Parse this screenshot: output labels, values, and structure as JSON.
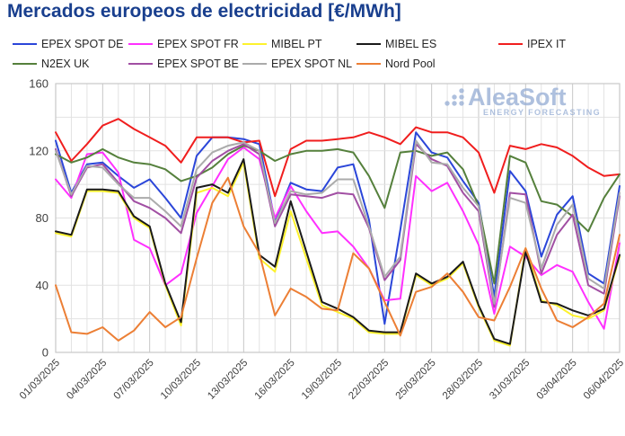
{
  "header": {
    "title": "Mercados europeos de electricidad [€/MWh]"
  },
  "watermark": {
    "brand": "AleaSoft",
    "tagline": "ENERGY FORECASTING",
    "color": "#9bb1d6"
  },
  "legend": {
    "rows": [
      [
        "EPEX SPOT DE",
        "EPEX SPOT FR",
        "MIBEL PT",
        "MIBEL ES",
        "IPEX IT"
      ],
      [
        "N2EX UK",
        "EPEX SPOT BE",
        "EPEX SPOT NL",
        "Nord Pool"
      ]
    ]
  },
  "chart_data": {
    "type": "line",
    "title": "Mercados europeos de electricidad [€/MWh]",
    "xlabel": "",
    "ylabel": "",
    "ylim": [
      0,
      160
    ],
    "y_ticks": [
      0,
      40,
      80,
      120,
      160
    ],
    "y_minor_step": 20,
    "grid": true,
    "legend_position": "top",
    "x": [
      "01/03/2025",
      "02/03/2025",
      "03/03/2025",
      "04/03/2025",
      "05/03/2025",
      "06/03/2025",
      "07/03/2025",
      "08/03/2025",
      "09/03/2025",
      "10/03/2025",
      "11/03/2025",
      "12/03/2025",
      "13/03/2025",
      "14/03/2025",
      "15/03/2025",
      "16/03/2025",
      "17/03/2025",
      "18/03/2025",
      "19/03/2025",
      "20/03/2025",
      "21/03/2025",
      "22/03/2025",
      "23/03/2025",
      "24/03/2025",
      "25/03/2025",
      "26/03/2025",
      "27/03/2025",
      "28/03/2025",
      "29/03/2025",
      "30/03/2025",
      "31/03/2025",
      "01/04/2025",
      "02/04/2025",
      "03/04/2025",
      "04/04/2025",
      "05/04/2025",
      "06/04/2025"
    ],
    "x_tick_labels": [
      "01/03/2025",
      "04/03/2025",
      "07/03/2025",
      "10/03/2025",
      "13/03/2025",
      "16/03/2025",
      "19/03/2025",
      "22/03/2025",
      "25/03/2025",
      "28/03/2025",
      "31/03/2025",
      "03/04/2025",
      "06/04/2025"
    ],
    "x_tick_every": 3,
    "series": [
      {
        "name": "EPEX SPOT DE",
        "color": "#2b46d9",
        "values": [
          126,
          95,
          112,
          113,
          105,
          98,
          103,
          92,
          80,
          117,
          128,
          128,
          127,
          124,
          78,
          101,
          97,
          96,
          110,
          112,
          79,
          17,
          73,
          131,
          119,
          116,
          102,
          89,
          33,
          108,
          96,
          57,
          82,
          93,
          47,
          41,
          99
        ]
      },
      {
        "name": "EPEX SPOT FR",
        "color": "#ff30ff",
        "values": [
          103,
          92,
          118,
          119,
          107,
          67,
          62,
          40,
          47,
          83,
          99,
          115,
          122,
          115,
          80,
          99,
          84,
          71,
          72,
          63,
          50,
          31,
          32,
          105,
          96,
          101,
          84,
          64,
          23,
          63,
          57,
          46,
          52,
          48,
          30,
          14,
          65
        ]
      },
      {
        "name": "MIBEL PT",
        "color": "#fdf22d",
        "values": [
          71,
          69,
          96,
          96,
          95,
          80,
          74,
          40,
          16,
          95,
          98,
          93,
          113,
          56,
          48,
          84,
          56,
          28,
          24,
          20,
          12,
          11,
          11,
          46,
          40,
          44,
          53,
          27,
          7,
          4,
          62,
          31,
          28,
          22,
          20,
          25,
          57
        ]
      },
      {
        "name": "MIBEL ES",
        "color": "#1a1a1a",
        "values": [
          72,
          70,
          97,
          97,
          96,
          81,
          75,
          41,
          18,
          98,
          100,
          95,
          115,
          58,
          51,
          90,
          60,
          30,
          26,
          21,
          13,
          12,
          12,
          47,
          41,
          45,
          54,
          28,
          8,
          5,
          60,
          30,
          29,
          25,
          22,
          26,
          58
        ]
      },
      {
        "name": "IPEX IT",
        "color": "#f01e1e",
        "values": [
          131,
          114,
          124,
          135,
          139,
          133,
          128,
          123,
          113,
          128,
          128,
          128,
          125,
          126,
          93,
          121,
          126,
          126,
          127,
          128,
          131,
          128,
          124,
          134,
          131,
          131,
          128,
          119,
          95,
          123,
          121,
          124,
          122,
          117,
          110,
          105,
          106
        ]
      },
      {
        "name": "N2EX UK",
        "color": "#55803c",
        "values": [
          118,
          113,
          116,
          121,
          116,
          113,
          112,
          109,
          102,
          105,
          110,
          118,
          123,
          120,
          114,
          118,
          120,
          120,
          121,
          119,
          105,
          86,
          119,
          120,
          117,
          119,
          109,
          87,
          41,
          117,
          113,
          90,
          88,
          81,
          72,
          92,
          106
        ]
      },
      {
        "name": "EPEX SPOT BE",
        "color": "#a14fa3",
        "values": [
          121,
          93,
          110,
          112,
          101,
          90,
          86,
          80,
          71,
          104,
          114,
          120,
          124,
          118,
          75,
          94,
          93,
          92,
          95,
          94,
          74,
          43,
          55,
          124,
          115,
          111,
          95,
          84,
          27,
          95,
          94,
          47,
          70,
          82,
          40,
          35,
          93
        ]
      },
      {
        "name": "EPEX SPOT NL",
        "color": "#ababab",
        "values": [
          120,
          94,
          111,
          110,
          100,
          92,
          92,
          84,
          75,
          109,
          119,
          123,
          125,
          120,
          77,
          96,
          94,
          95,
          103,
          103,
          75,
          45,
          57,
          126,
          113,
          112,
          98,
          87,
          29,
          92,
          89,
          50,
          76,
          88,
          44,
          38,
          95
        ]
      },
      {
        "name": "Nord Pool",
        "color": "#ec7f35",
        "values": [
          40,
          12,
          11,
          15,
          7,
          13,
          24,
          15,
          21,
          56,
          89,
          104,
          75,
          59,
          22,
          38,
          33,
          26,
          25,
          59,
          50,
          30,
          10,
          36,
          39,
          47,
          36,
          21,
          19,
          39,
          62,
          38,
          19,
          15,
          21,
          29,
          70
        ]
      }
    ]
  },
  "layout_colors": {
    "title": "#193f8e",
    "tick_label": "#3f3f3f",
    "grid_minor": "#e2e2e2",
    "grid_major": "#c6c6c6",
    "plot_border": "#c9c9c9"
  }
}
